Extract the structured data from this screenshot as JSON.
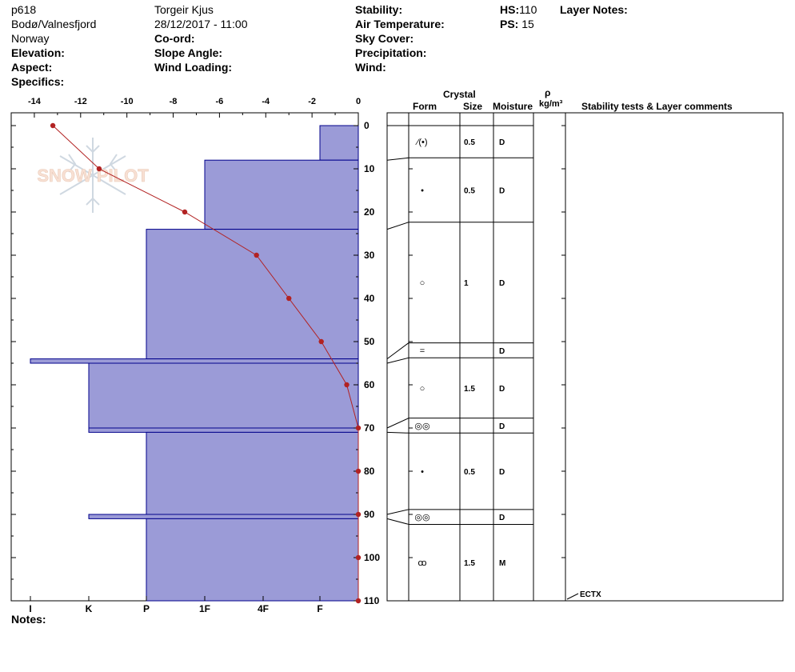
{
  "header": {
    "pit_id": "p618",
    "location": "Bodø/Valnesfjord",
    "country": "Norway",
    "elevation_label": "Elevation:",
    "aspect_label": "Aspect:",
    "specifics_label": "Specifics:",
    "observer": "Torgeir Kjus",
    "datetime": "28/12/2017 - 11:00",
    "coord_label": "Co-ord:",
    "slope_label": "Slope Angle:",
    "wind_loading_label": "Wind Loading:",
    "stability_label": "Stability:",
    "air_temp_label": "Air Temperature:",
    "sky_cover_label": "Sky Cover:",
    "precip_label": "Precipitation:",
    "wind_label": "Wind:",
    "hs_label": "HS:",
    "hs_value": "110",
    "ps_label": "PS:",
    "ps_value": "15",
    "layer_notes_label": "Layer Notes:"
  },
  "notes_label": "Notes:",
  "watermark": "SNOW PILOT",
  "columns": {
    "crystal": "Crystal",
    "form": "Form",
    "size": "Size",
    "moisture": "Moisture",
    "rho": "ρ",
    "density_unit": "kg/m³",
    "stability": "Stability tests & Layer comments"
  },
  "colors": {
    "hardness_fill": "#9b9bd7",
    "hardness_stroke": "#00008b",
    "temp_line": "#b22222"
  },
  "chart_data": {
    "type": "snow-profile",
    "temperature_axis": {
      "ticks": [
        "-14",
        "-12",
        "-10",
        "-8",
        "-6",
        "-4",
        "-2",
        "0"
      ],
      "range": [
        -15,
        0
      ]
    },
    "depth_axis": {
      "ticks": [
        "0",
        "10",
        "20",
        "30",
        "40",
        "50",
        "60",
        "70",
        "80",
        "90",
        "100",
        "110"
      ],
      "range": [
        0,
        110
      ]
    },
    "hardness_axis": {
      "ticks": [
        "I",
        "K",
        "P",
        "1F",
        "4F",
        "F"
      ]
    },
    "temperature_profile": [
      {
        "depth": 0,
        "temp": -13.2
      },
      {
        "depth": 10,
        "temp": -11.2
      },
      {
        "depth": 20,
        "temp": -7.5
      },
      {
        "depth": 30,
        "temp": -4.4
      },
      {
        "depth": 40,
        "temp": -3.0
      },
      {
        "depth": 50,
        "temp": -1.6
      },
      {
        "depth": 60,
        "temp": -0.5
      },
      {
        "depth": 70,
        "temp": 0
      },
      {
        "depth": 80,
        "temp": 0
      },
      {
        "depth": 90,
        "temp": 0
      },
      {
        "depth": 100,
        "temp": 0
      },
      {
        "depth": 110,
        "temp": 0
      }
    ],
    "layers": [
      {
        "top": 0,
        "bottom": 8,
        "hardness": "F",
        "form": "⁄(•)",
        "size": "0.5",
        "moisture": "D"
      },
      {
        "top": 8,
        "bottom": 24,
        "hardness": "1F",
        "form": "•",
        "size": "0.5",
        "moisture": "D"
      },
      {
        "top": 24,
        "bottom": 54,
        "hardness": "P",
        "form": "○",
        "size": "1",
        "moisture": "D"
      },
      {
        "top": 54,
        "bottom": 55,
        "hardness": "I",
        "form": "=",
        "size": "",
        "moisture": "D"
      },
      {
        "top": 55,
        "bottom": 70,
        "hardness": "K",
        "form": "○",
        "size": "1.5",
        "moisture": "D"
      },
      {
        "top": 70,
        "bottom": 71,
        "hardness": "K",
        "form": "◎◎",
        "size": "",
        "moisture": "D"
      },
      {
        "top": 71,
        "bottom": 90,
        "hardness": "P",
        "form": "•",
        "size": "0.5",
        "moisture": "D"
      },
      {
        "top": 90,
        "bottom": 91,
        "hardness": "K",
        "form": "◎◎",
        "size": "",
        "moisture": "D"
      },
      {
        "top": 91,
        "bottom": 110,
        "hardness": "P",
        "form": "ꝏ",
        "size": "1.5",
        "moisture": "M"
      }
    ],
    "stability_tests": [
      {
        "depth": 110,
        "label": "ECTX"
      }
    ]
  }
}
